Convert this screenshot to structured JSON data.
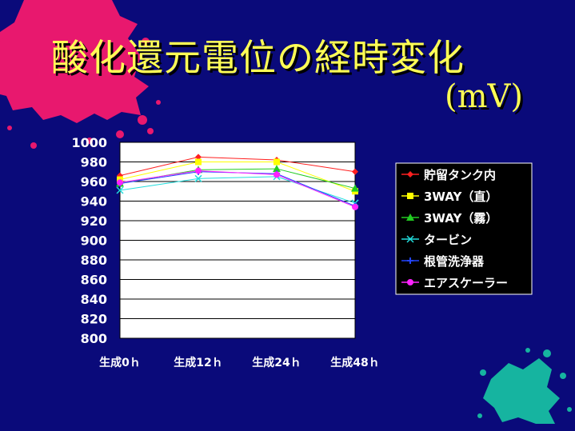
{
  "slide": {
    "title": "酸化還元電位の経時変化",
    "unit": "(mV)"
  },
  "colors": {
    "background": "#0a0a7a",
    "title": "#ffff55",
    "plot_area": "#ffffff",
    "splash_pink": "#e8186e",
    "splash_teal": "#16b4a0"
  },
  "chart_data": {
    "type": "line",
    "categories": [
      "生成0ｈ",
      "生成12ｈ",
      "生成24ｈ",
      "生成48ｈ"
    ],
    "ylim": [
      800,
      1000
    ],
    "ytick_step": 20,
    "grid": true,
    "legend_position": "right",
    "series": [
      {
        "name": "貯留タンク内",
        "values": [
          966,
          985,
          982,
          970
        ],
        "color": "#ff2020",
        "marker": "diamond"
      },
      {
        "name": "3WAY（直）",
        "values": [
          962,
          980,
          980,
          950
        ],
        "color": "#ffff00",
        "marker": "square"
      },
      {
        "name": "3WAY（霧）",
        "values": [
          958,
          972,
          973,
          953
        ],
        "color": "#22cc22",
        "marker": "triangle"
      },
      {
        "name": "タービン",
        "values": [
          951,
          963,
          965,
          938
        ],
        "color": "#22dddd",
        "marker": "x"
      },
      {
        "name": "根管洗浄器",
        "values": [
          958,
          970,
          968,
          935
        ],
        "color": "#2244ff",
        "marker": "plus"
      },
      {
        "name": "エアスケーラー",
        "values": [
          959,
          971,
          967,
          934
        ],
        "color": "#ff22ff",
        "marker": "circle"
      }
    ]
  }
}
